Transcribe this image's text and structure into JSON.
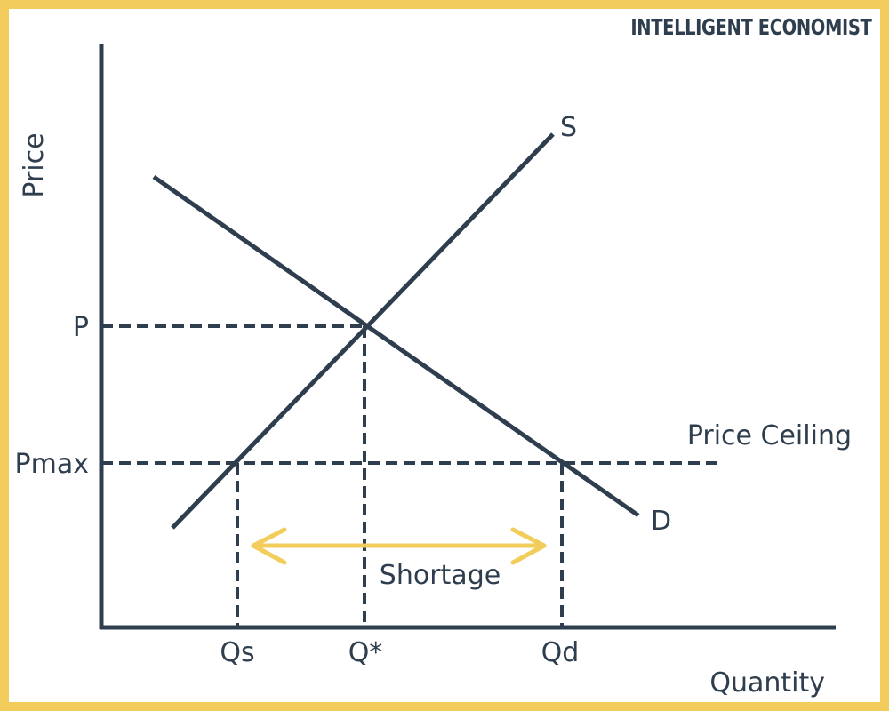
{
  "brand": {
    "text": "INTELLIGENT ECONOMIST"
  },
  "axes": {
    "y_label": "Price",
    "x_label": "Quantity"
  },
  "curves": {
    "supply_label": "S",
    "demand_label": "D"
  },
  "price_ticks": {
    "equilibrium": "P",
    "ceiling": "Pmax"
  },
  "quantity_ticks": {
    "supplied": "Qs",
    "equilibrium": "Q*",
    "demanded": "Qd"
  },
  "annotations": {
    "ceiling_label": "Price Ceiling",
    "shortage_label": "Shortage"
  },
  "colors": {
    "ink": "#2f3e4e",
    "accent": "#f2cd5c"
  }
}
